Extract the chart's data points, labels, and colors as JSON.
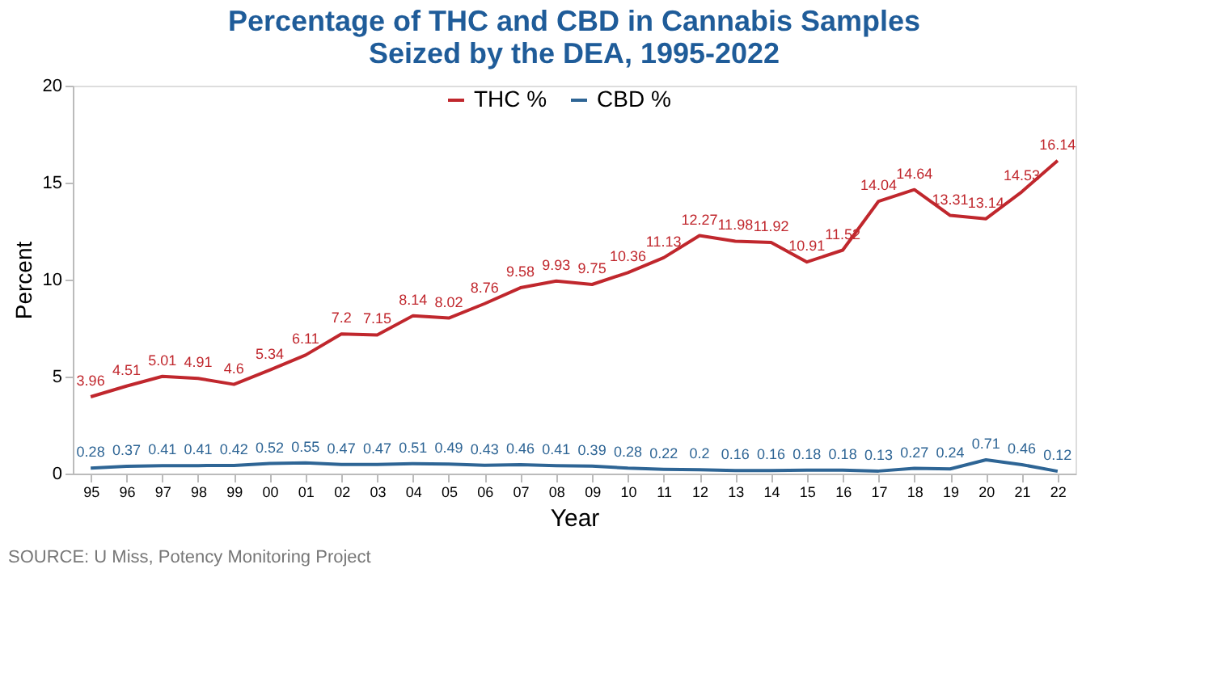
{
  "chart_data": {
    "type": "line",
    "title": "Percentage of THC and CBD in Cannabis Samples\nSeized by the DEA, 1995-2022",
    "xlabel": "Year",
    "ylabel": "Percent",
    "categories": [
      "95",
      "96",
      "97",
      "98",
      "99",
      "00",
      "01",
      "02",
      "03",
      "04",
      "05",
      "06",
      "07",
      "08",
      "09",
      "10",
      "11",
      "12",
      "13",
      "14",
      "15",
      "16",
      "17",
      "18",
      "19",
      "20",
      "21",
      "22"
    ],
    "series": [
      {
        "name": "THC %",
        "color": "#c0272d",
        "values": [
          3.96,
          4.51,
          5.01,
          4.91,
          4.6,
          5.34,
          6.11,
          7.2,
          7.15,
          8.14,
          8.02,
          8.76,
          9.58,
          9.93,
          9.75,
          10.36,
          11.13,
          12.27,
          11.98,
          11.92,
          10.91,
          11.52,
          14.04,
          14.64,
          13.31,
          13.14,
          14.53,
          16.14
        ]
      },
      {
        "name": "CBD %",
        "color": "#2e6595",
        "values": [
          0.28,
          0.37,
          0.41,
          0.41,
          0.42,
          0.52,
          0.55,
          0.47,
          0.47,
          0.51,
          0.49,
          0.43,
          0.46,
          0.41,
          0.39,
          0.28,
          0.22,
          0.2,
          0.16,
          0.16,
          0.18,
          0.18,
          0.13,
          0.27,
          0.24,
          0.71,
          0.46,
          0.12
        ]
      }
    ],
    "ylim": [
      0,
      20
    ],
    "yticks": [
      0,
      5,
      10,
      15,
      20
    ],
    "grid": false,
    "legend": "top",
    "data_labels": true,
    "marker": "none",
    "line_style": "solid",
    "annotations": [
      "SOURCE: U Miss, Potency Monitoring Project"
    ]
  }
}
